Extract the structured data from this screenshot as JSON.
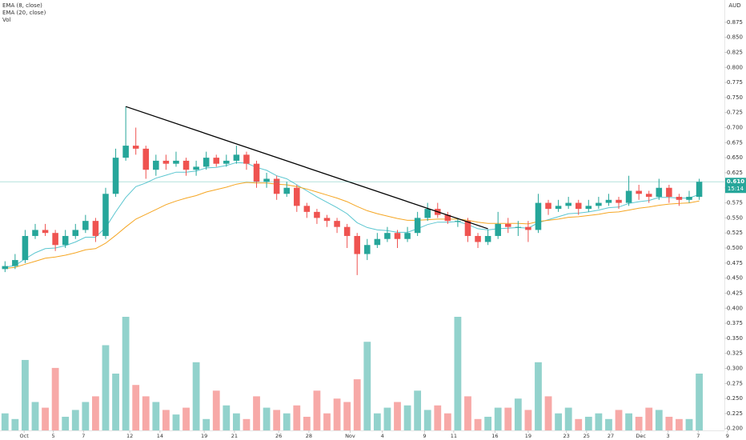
{
  "chart_data": {
    "type": "candlestick",
    "currency": "AUD",
    "up_color": "#26a69a",
    "down_color": "#ef5350",
    "open": [
      0.465,
      0.47,
      0.48,
      0.52,
      0.53,
      0.525,
      0.505,
      0.52,
      0.53,
      0.545,
      0.52,
      0.59,
      0.65,
      0.67,
      0.665,
      0.63,
      0.645,
      0.64,
      0.645,
      0.63,
      0.635,
      0.65,
      0.64,
      0.645,
      0.655,
      0.64,
      0.61,
      0.615,
      0.59,
      0.6,
      0.57,
      0.56,
      0.55,
      0.545,
      0.535,
      0.52,
      0.49,
      0.505,
      0.515,
      0.525,
      0.515,
      0.525,
      0.55,
      0.565,
      0.555,
      0.545,
      0.545,
      0.52,
      0.51,
      0.52,
      0.54,
      0.535,
      0.535,
      0.53,
      0.575,
      0.565,
      0.57,
      0.575,
      0.565,
      0.57,
      0.575,
      0.58,
      0.575,
      0.595,
      0.59,
      0.585,
      0.6,
      0.585,
      0.58,
      0.585
    ],
    "high": [
      0.478,
      0.49,
      0.53,
      0.54,
      0.54,
      0.53,
      0.53,
      0.54,
      0.555,
      0.55,
      0.6,
      0.665,
      0.735,
      0.7,
      0.67,
      0.655,
      0.655,
      0.66,
      0.65,
      0.645,
      0.66,
      0.655,
      0.655,
      0.67,
      0.66,
      0.645,
      0.625,
      0.62,
      0.61,
      0.605,
      0.575,
      0.565,
      0.555,
      0.55,
      0.54,
      0.525,
      0.515,
      0.525,
      0.535,
      0.53,
      0.535,
      0.56,
      0.575,
      0.575,
      0.56,
      0.55,
      0.55,
      0.525,
      0.53,
      0.56,
      0.55,
      0.545,
      0.545,
      0.59,
      0.58,
      0.58,
      0.585,
      0.58,
      0.58,
      0.585,
      0.59,
      0.585,
      0.62,
      0.605,
      0.595,
      0.615,
      0.605,
      0.59,
      0.595,
      0.615
    ],
    "low": [
      0.46,
      0.465,
      0.475,
      0.515,
      0.52,
      0.495,
      0.5,
      0.515,
      0.525,
      0.51,
      0.515,
      0.585,
      0.645,
      0.655,
      0.615,
      0.62,
      0.63,
      0.635,
      0.62,
      0.62,
      0.63,
      0.635,
      0.635,
      0.64,
      0.63,
      0.6,
      0.6,
      0.58,
      0.585,
      0.56,
      0.55,
      0.54,
      0.535,
      0.525,
      0.5,
      0.455,
      0.48,
      0.5,
      0.51,
      0.5,
      0.51,
      0.52,
      0.545,
      0.55,
      0.54,
      0.535,
      0.51,
      0.5,
      0.505,
      0.515,
      0.525,
      0.52,
      0.51,
      0.525,
      0.555,
      0.56,
      0.565,
      0.555,
      0.56,
      0.565,
      0.57,
      0.565,
      0.57,
      0.58,
      0.575,
      0.58,
      0.575,
      0.57,
      0.575,
      0.58
    ],
    "close": [
      0.47,
      0.48,
      0.52,
      0.53,
      0.525,
      0.505,
      0.52,
      0.53,
      0.545,
      0.52,
      0.59,
      0.65,
      0.67,
      0.665,
      0.63,
      0.645,
      0.64,
      0.645,
      0.63,
      0.635,
      0.65,
      0.64,
      0.645,
      0.655,
      0.64,
      0.61,
      0.615,
      0.59,
      0.6,
      0.57,
      0.56,
      0.55,
      0.545,
      0.535,
      0.52,
      0.49,
      0.505,
      0.515,
      0.525,
      0.515,
      0.525,
      0.55,
      0.565,
      0.555,
      0.545,
      0.545,
      0.52,
      0.51,
      0.52,
      0.54,
      0.535,
      0.535,
      0.53,
      0.575,
      0.565,
      0.57,
      0.575,
      0.565,
      0.57,
      0.575,
      0.58,
      0.575,
      0.595,
      0.59,
      0.585,
      0.6,
      0.585,
      0.58,
      0.585,
      0.61
    ],
    "volume_name": "Vol",
    "volume": [
      15,
      10,
      62,
      25,
      20,
      55,
      12,
      18,
      25,
      30,
      75,
      50,
      100,
      40,
      30,
      25,
      18,
      14,
      20,
      60,
      10,
      35,
      22,
      15,
      10,
      30,
      20,
      18,
      15,
      22,
      12,
      35,
      15,
      28,
      25,
      45,
      78,
      15,
      20,
      25,
      22,
      35,
      18,
      22,
      15,
      100,
      30,
      10,
      12,
      20,
      20,
      28,
      18,
      60,
      30,
      15,
      20,
      10,
      12,
      15,
      10,
      18,
      15,
      12,
      20,
      18,
      12,
      10,
      10,
      50
    ],
    "series": [
      {
        "name": "EMA (8, close)",
        "color": "#5bc6d0",
        "values": [
          0.468,
          0.471,
          0.482,
          0.492,
          0.499,
          0.5,
          0.504,
          0.51,
          0.518,
          0.518,
          0.534,
          0.56,
          0.584,
          0.602,
          0.608,
          0.616,
          0.621,
          0.626,
          0.626,
          0.628,
          0.633,
          0.634,
          0.637,
          0.642,
          0.641,
          0.634,
          0.629,
          0.62,
          0.615,
          0.605,
          0.595,
          0.585,
          0.576,
          0.567,
          0.557,
          0.542,
          0.534,
          0.53,
          0.529,
          0.526,
          0.526,
          0.532,
          0.539,
          0.543,
          0.543,
          0.544,
          0.539,
          0.532,
          0.53,
          0.532,
          0.533,
          0.534,
          0.533,
          0.542,
          0.547,
          0.552,
          0.557,
          0.558,
          0.56,
          0.563,
          0.567,
          0.568,
          0.574,
          0.577,
          0.579,
          0.584,
          0.584,
          0.583,
          0.583,
          0.589
        ]
      },
      {
        "name": "EMA (20, close)",
        "color": "#f5a623",
        "values": [
          0.466,
          0.468,
          0.473,
          0.478,
          0.483,
          0.485,
          0.488,
          0.492,
          0.497,
          0.499,
          0.508,
          0.521,
          0.535,
          0.548,
          0.556,
          0.564,
          0.572,
          0.578,
          0.583,
          0.587,
          0.593,
          0.597,
          0.601,
          0.606,
          0.609,
          0.608,
          0.608,
          0.606,
          0.605,
          0.602,
          0.598,
          0.593,
          0.588,
          0.583,
          0.577,
          0.569,
          0.562,
          0.557,
          0.553,
          0.549,
          0.546,
          0.546,
          0.547,
          0.548,
          0.548,
          0.548,
          0.546,
          0.543,
          0.541,
          0.541,
          0.541,
          0.541,
          0.54,
          0.544,
          0.546,
          0.548,
          0.551,
          0.552,
          0.554,
          0.556,
          0.559,
          0.56,
          0.563,
          0.566,
          0.568,
          0.571,
          0.573,
          0.574,
          0.575,
          0.578
        ]
      }
    ],
    "trendline": {
      "start": {
        "x": 12,
        "y": 0.735
      },
      "end": {
        "x": 48,
        "y": 0.532
      },
      "color": "#000000"
    },
    "last_price": {
      "value": 0.61,
      "label": "0.610"
    },
    "countdown": "15:14",
    "xlim": [
      -0.5,
      71.5
    ],
    "xticks": [
      {
        "value": 1.9,
        "label": "Oct"
      },
      {
        "value": 4.8,
        "label": "5"
      },
      {
        "value": 7.8,
        "label": "7"
      },
      {
        "value": 12.4,
        "label": "12"
      },
      {
        "value": 15.4,
        "label": "14"
      },
      {
        "value": 19.8,
        "label": "19"
      },
      {
        "value": 22.8,
        "label": "21"
      },
      {
        "value": 27.2,
        "label": "26"
      },
      {
        "value": 30.2,
        "label": "28"
      },
      {
        "value": 34.3,
        "label": "Nov"
      },
      {
        "value": 37.5,
        "label": "4"
      },
      {
        "value": 41.7,
        "label": "9"
      },
      {
        "value": 44.6,
        "label": "11"
      },
      {
        "value": 48.7,
        "label": "16"
      },
      {
        "value": 52.0,
        "label": "19"
      },
      {
        "value": 55.8,
        "label": "23"
      },
      {
        "value": 57.8,
        "label": "25"
      },
      {
        "value": 60.2,
        "label": "27"
      },
      {
        "value": 63.2,
        "label": "Dec"
      },
      {
        "value": 65.9,
        "label": "3"
      },
      {
        "value": 68.9,
        "label": "7"
      },
      {
        "value": 71.8,
        "label": "9"
      }
    ],
    "ylim": [
      0.197,
      0.912
    ],
    "yticks": [
      {
        "value": 0.2,
        "label": "0.200"
      },
      {
        "value": 0.225,
        "label": "0.225"
      },
      {
        "value": 0.25,
        "label": "0.250"
      },
      {
        "value": 0.275,
        "label": "0.275"
      },
      {
        "value": 0.3,
        "label": "0.300"
      },
      {
        "value": 0.325,
        "label": "0.325"
      },
      {
        "value": 0.35,
        "label": "0.350"
      },
      {
        "value": 0.375,
        "label": "0.375"
      },
      {
        "value": 0.4,
        "label": "0.400"
      },
      {
        "value": 0.425,
        "label": "0.425"
      },
      {
        "value": 0.45,
        "label": "0.450"
      },
      {
        "value": 0.475,
        "label": "0.475"
      },
      {
        "value": 0.5,
        "label": "0.500"
      },
      {
        "value": 0.525,
        "label": "0.525"
      },
      {
        "value": 0.55,
        "label": "0.550"
      },
      {
        "value": 0.575,
        "label": "0.575"
      },
      {
        "value": 0.6,
        "label": "0.600"
      },
      {
        "value": 0.625,
        "label": "0.625"
      },
      {
        "value": 0.65,
        "label": "0.650"
      },
      {
        "value": 0.675,
        "label": "0.675"
      },
      {
        "value": 0.7,
        "label": "0.700"
      },
      {
        "value": 0.725,
        "label": "0.725"
      },
      {
        "value": 0.75,
        "label": "0.750"
      },
      {
        "value": 0.775,
        "label": "0.775"
      },
      {
        "value": 0.8,
        "label": "0.800"
      },
      {
        "value": 0.825,
        "label": "0.825"
      },
      {
        "value": 0.85,
        "label": "0.850"
      },
      {
        "value": 0.875,
        "label": "0.875"
      }
    ]
  }
}
